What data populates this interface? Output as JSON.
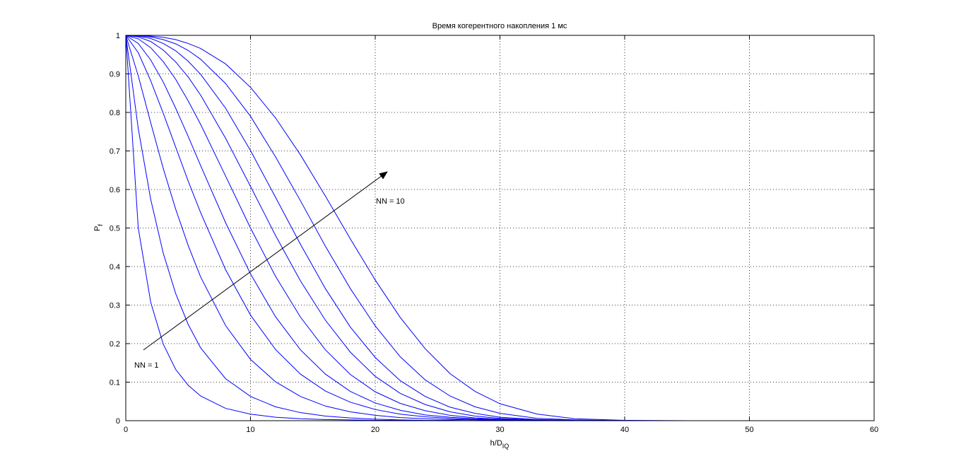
{
  "chart_data": {
    "type": "line",
    "title": "Время когерентного накопления 1 мс",
    "xlabel": {
      "text": "h/D",
      "subscript": "IQ"
    },
    "ylabel": {
      "text": "P",
      "subscript": "f"
    },
    "x": [
      0,
      1,
      2,
      3,
      4,
      5,
      6,
      8,
      10,
      12,
      14,
      16,
      18,
      20,
      22,
      24,
      26,
      28,
      30,
      33,
      36,
      40,
      45,
      53
    ],
    "series": [
      {
        "color": "#0000ff",
        "values": [
          1,
          0.5,
          0.307,
          0.199,
          0.133,
          0.092,
          0.064,
          0.032,
          0.017,
          0.009,
          0.005,
          0.003,
          0.002,
          0.001,
          0.001,
          0,
          0,
          0,
          0,
          0,
          0,
          0,
          0,
          0
        ]
      },
      {
        "color": "#0000ff",
        "values": [
          1,
          0.758,
          0.574,
          0.435,
          0.33,
          0.25,
          0.189,
          0.109,
          0.063,
          0.036,
          0.021,
          0.012,
          0.007,
          0.004,
          0.002,
          0.001,
          0.001,
          0,
          0,
          0,
          0,
          0,
          0,
          0
        ]
      },
      {
        "color": "#0000ff",
        "values": [
          1,
          0.895,
          0.773,
          0.655,
          0.549,
          0.455,
          0.373,
          0.247,
          0.159,
          0.101,
          0.063,
          0.038,
          0.023,
          0.014,
          0.008,
          0.005,
          0.003,
          0.002,
          0.001,
          0.001,
          0,
          0,
          0,
          0
        ]
      },
      {
        "color": "#0000ff",
        "values": [
          1,
          0.955,
          0.882,
          0.798,
          0.71,
          0.622,
          0.54,
          0.392,
          0.274,
          0.185,
          0.121,
          0.077,
          0.048,
          0.029,
          0.017,
          0.01,
          0.006,
          0.003,
          0.002,
          0.001,
          0,
          0,
          0,
          0
        ]
      },
      {
        "color": "#0000ff",
        "values": [
          1,
          0.979,
          0.936,
          0.879,
          0.811,
          0.738,
          0.662,
          0.514,
          0.381,
          0.27,
          0.184,
          0.121,
          0.076,
          0.046,
          0.027,
          0.015,
          0.009,
          0.005,
          0.003,
          0.001,
          0.001,
          0,
          0,
          0
        ]
      },
      {
        "color": "#0000ff",
        "values": [
          1,
          0.991,
          0.968,
          0.932,
          0.886,
          0.83,
          0.769,
          0.635,
          0.5,
          0.375,
          0.269,
          0.184,
          0.12,
          0.075,
          0.045,
          0.026,
          0.014,
          0.007,
          0.004,
          0.001,
          0,
          0,
          0,
          0
        ]
      },
      {
        "color": "#0000ff",
        "values": [
          1,
          0.996,
          0.984,
          0.962,
          0.931,
          0.892,
          0.845,
          0.733,
          0.608,
          0.481,
          0.363,
          0.261,
          0.178,
          0.115,
          0.071,
          0.042,
          0.023,
          0.012,
          0.006,
          0.002,
          0.001,
          0,
          0,
          0
        ]
      },
      {
        "color": "#0000ff",
        "values": [
          1,
          0.998,
          0.992,
          0.979,
          0.96,
          0.933,
          0.899,
          0.811,
          0.701,
          0.58,
          0.458,
          0.343,
          0.243,
          0.164,
          0.104,
          0.063,
          0.035,
          0.019,
          0.009,
          0.003,
          0.001,
          0,
          0,
          0
        ]
      },
      {
        "color": "#0000ff",
        "values": [
          1,
          0.999,
          0.996,
          0.989,
          0.978,
          0.961,
          0.938,
          0.875,
          0.79,
          0.685,
          0.571,
          0.453,
          0.343,
          0.246,
          0.166,
          0.106,
          0.064,
          0.036,
          0.019,
          0.006,
          0.002,
          0,
          0,
          0
        ]
      },
      {
        "color": "#0000ff",
        "values": [
          1,
          1,
          0.998,
          0.995,
          0.989,
          0.979,
          0.966,
          0.926,
          0.865,
          0.786,
          0.69,
          0.583,
          0.472,
          0.365,
          0.268,
          0.187,
          0.122,
          0.076,
          0.044,
          0.017,
          0.005,
          0.001,
          0,
          0
        ]
      }
    ],
    "annotations": [
      "NN = 1",
      "NN = 10"
    ],
    "xlim": [
      0,
      60
    ],
    "xticks": [
      0,
      10,
      20,
      30,
      40,
      50,
      60
    ],
    "ylim": [
      0,
      1
    ],
    "yticks": [
      0,
      0.1,
      0.2,
      0.3,
      0.4,
      0.5,
      0.6,
      0.7,
      0.8,
      0.9,
      1
    ],
    "grid": true
  }
}
